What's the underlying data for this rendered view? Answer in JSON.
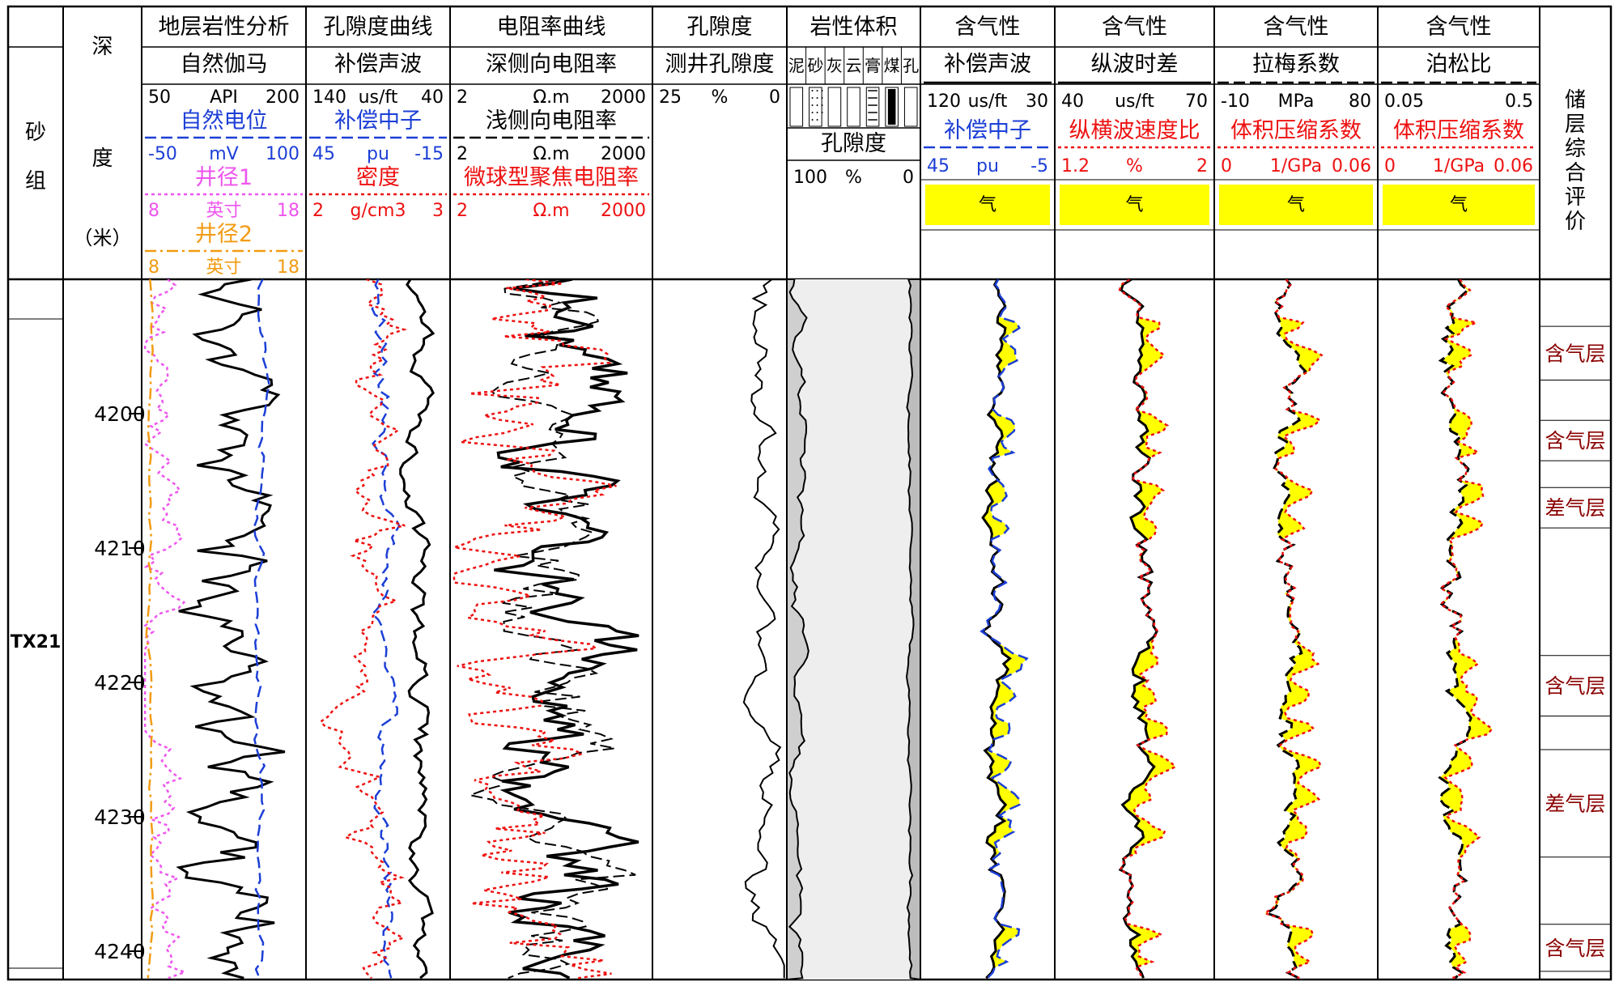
{
  "chart_data": {
    "type": "well-log",
    "colors": {
      "black": "#000000",
      "blue": "#1c3fd6",
      "magenta": "#ee55ee",
      "orange": "#f29b12",
      "red": "#ee1111",
      "fill": "#ffff00",
      "dark_red": "#8b0000"
    },
    "header": {
      "sand_group": "砂组",
      "depth": [
        "深",
        "度",
        "（米）"
      ],
      "tracks": [
        {
          "title": "地层岩性分析",
          "curves": [
            {
              "name": "自然伽马",
              "min": "50",
              "unit": "API",
              "max": "200",
              "color": "black",
              "style": "solid"
            },
            {
              "name": "自然电位",
              "min": "-50",
              "unit": "mV",
              "max": "100",
              "color": "blue",
              "style": "dash"
            },
            {
              "name": "井径1",
              "min": "8",
              "unit": "英寸",
              "max": "18",
              "color": "magenta",
              "style": "dot"
            },
            {
              "name": "井径2",
              "min": "8",
              "unit": "英寸",
              "max": "18",
              "color": "orange",
              "style": "dashdot"
            }
          ]
        },
        {
          "title": "孔隙度曲线",
          "curves": [
            {
              "name": "补偿声波",
              "min": "140",
              "unit": "us/ft",
              "max": "40",
              "color": "black",
              "style": "solid"
            },
            {
              "name": "补偿中子",
              "min": "45",
              "unit": "pu",
              "max": "-15",
              "color": "blue",
              "style": "dash"
            },
            {
              "name": "密度",
              "min": "2",
              "unit": "g/cm3",
              "max": "3",
              "color": "red",
              "style": "dot"
            }
          ]
        },
        {
          "title": "电阻率曲线",
          "curves": [
            {
              "name": "深侧向电阻率",
              "min": "2",
              "unit": "Ω.m",
              "max": "2000",
              "color": "black",
              "style": "solid"
            },
            {
              "name": "浅侧向电阻率",
              "min": "2",
              "unit": "Ω.m",
              "max": "2000",
              "color": "black",
              "style": "dash"
            },
            {
              "name": "微球型聚焦电阻率",
              "min": "2",
              "unit": "Ω.m",
              "max": "2000",
              "color": "red",
              "style": "dot"
            }
          ]
        },
        {
          "title": "孔隙度",
          "curves": [
            {
              "name": "测井孔隙度",
              "min": "25",
              "unit": "%",
              "max": "0",
              "color": "black",
              "style": "solid"
            }
          ]
        },
        {
          "title": "岩性体积",
          "lithology": [
            "泥",
            "砂",
            "灰",
            "云",
            "膏",
            "煤",
            "孔"
          ],
          "subtitle": "孔隙度",
          "min": "100",
          "unit": "%",
          "max": "0"
        },
        {
          "title": "含气性",
          "curves": [
            {
              "name": "补偿声波",
              "min": "120",
              "unit": "us/ft",
              "max": "30",
              "color": "black",
              "style": "solid"
            },
            {
              "name": "补偿中子",
              "min": "45",
              "unit": "pu",
              "max": "-5",
              "color": "blue",
              "style": "dash"
            }
          ],
          "fill_label": "气"
        },
        {
          "title": "含气性",
          "curves": [
            {
              "name": "纵波时差",
              "min": "40",
              "unit": "us/ft",
              "max": "70",
              "color": "black",
              "style": "solid"
            },
            {
              "name": "纵横波速度比",
              "min": "1.2",
              "unit": "%",
              "max": "2",
              "color": "red",
              "style": "dot"
            }
          ],
          "fill_label": "气"
        },
        {
          "title": "含气性",
          "curves": [
            {
              "name": "拉梅系数",
              "min": "-10",
              "unit": "MPa",
              "max": "80",
              "color": "black",
              "style": "dash"
            },
            {
              "name": "体积压缩系数",
              "min": "0",
              "unit": "1/GPa",
              "max": "0.06",
              "color": "red",
              "style": "dot"
            }
          ],
          "fill_label": "气"
        },
        {
          "title": "含气性",
          "curves": [
            {
              "name": "泊松比",
              "min": "0.05",
              "unit": "",
              "max": "0.5",
              "color": "black",
              "style": "dash"
            },
            {
              "name": "体积压缩系数",
              "min": "0",
              "unit": "1/GPa",
              "max": "0.06",
              "color": "red",
              "style": "dot"
            }
          ],
          "fill_label": "气"
        }
      ],
      "evaluation": "储层综合评价"
    },
    "depth_range": [
      4190,
      4242
    ],
    "depth_ticks": [
      4200,
      4210,
      4220,
      4230,
      4240
    ],
    "sand_group_name": "TX21",
    "evaluation_zones": [
      {
        "top": 4193.5,
        "bottom": 4197.5,
        "label": "含气层"
      },
      {
        "top": 4200.5,
        "bottom": 4203.5,
        "label": "含气层"
      },
      {
        "top": 4205.5,
        "bottom": 4208.5,
        "label": "差气层"
      },
      {
        "top": 4218.0,
        "bottom": 4222.5,
        "label": "含气层"
      },
      {
        "top": 4225.0,
        "bottom": 4233.0,
        "label": "差气层"
      },
      {
        "top": 4238.0,
        "bottom": 4241.5,
        "label": "含气层"
      }
    ],
    "gas_intervals": [
      [
        4193,
        4197
      ],
      [
        4200,
        4203
      ],
      [
        4205,
        4209
      ],
      [
        4217,
        4224
      ],
      [
        4225,
        4233
      ],
      [
        4238,
        4241
      ]
    ]
  }
}
